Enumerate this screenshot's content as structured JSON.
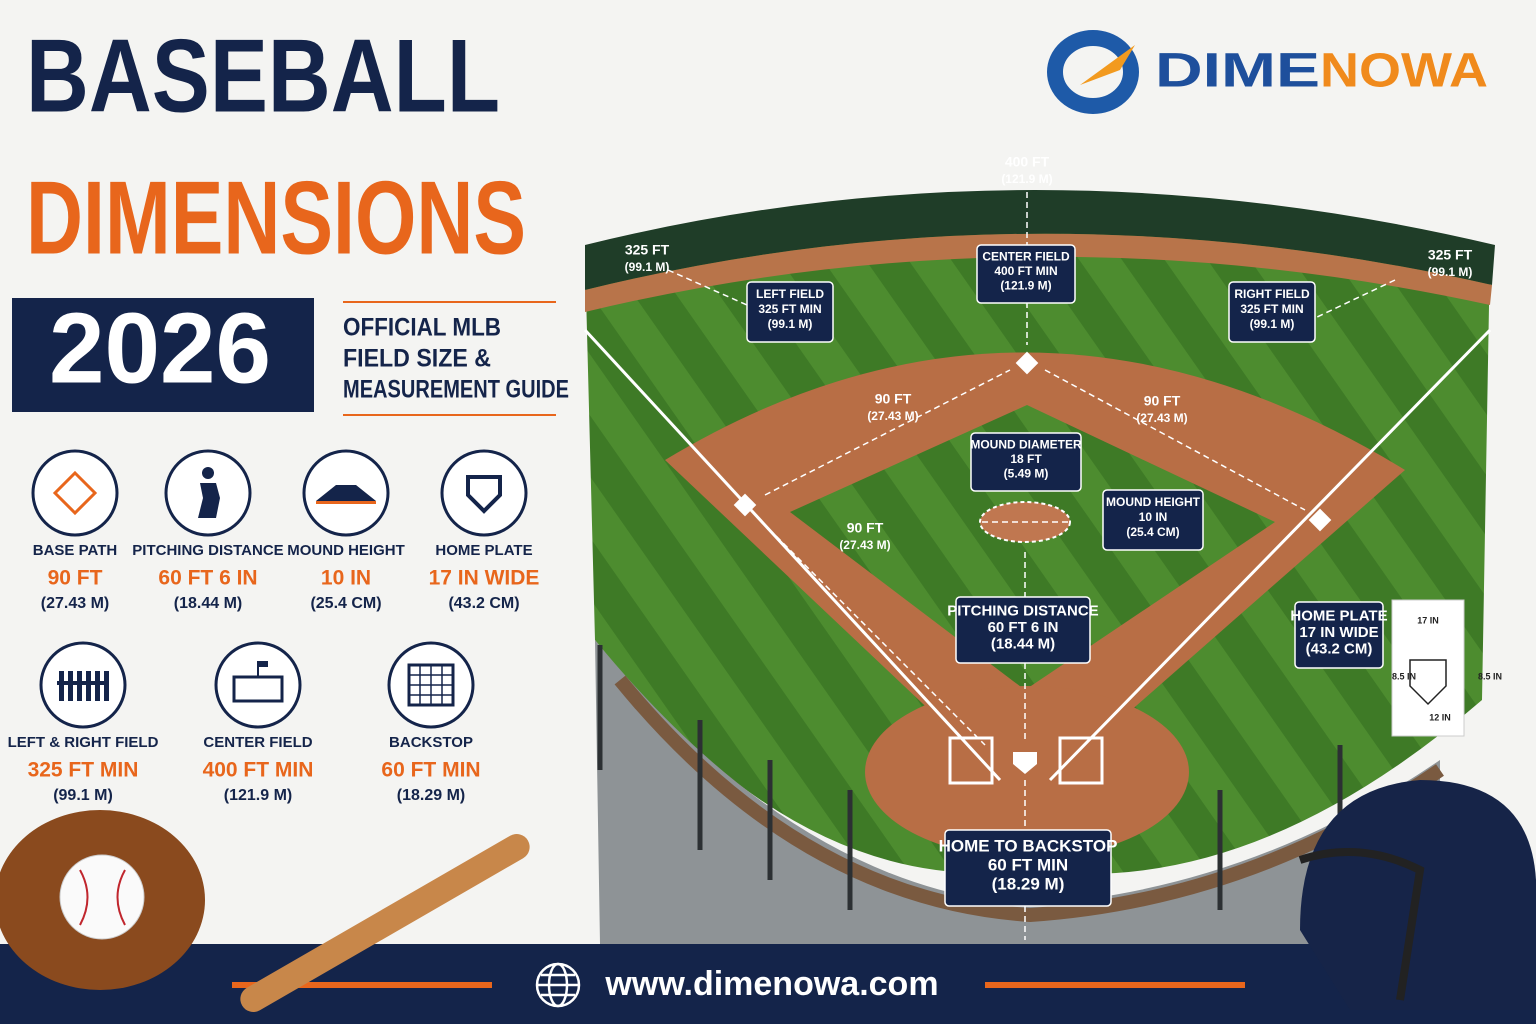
{
  "header": {
    "title": [
      "BASEBALL",
      "DIMENSIONS"
    ],
    "year": "2026",
    "subtitle": [
      "OFFICIAL MLB",
      "FIELD SIZE &",
      "MEASUREMENT GUIDE"
    ]
  },
  "brand": {
    "name": [
      "DIME",
      "NOWA"
    ]
  },
  "stats": [
    {
      "label": "BASE PATH",
      "value": "90 FT",
      "metric": "(27.43 M)"
    },
    {
      "label": "PITCHING DISTANCE",
      "value": "60 FT 6 IN",
      "metric": "(18.44 M)"
    },
    {
      "label": "MOUND HEIGHT",
      "value": "10 IN",
      "metric": "(25.4 CM)"
    },
    {
      "label": "HOME PLATE",
      "value": "17 IN WIDE",
      "metric": "(43.2 CM)"
    },
    {
      "label": "LEFT & RIGHT FIELD",
      "value": "325 FT MIN",
      "metric": "(99.1 M)"
    },
    {
      "label": "CENTER FIELD",
      "value": "400 FT MIN",
      "metric": "(121.9 M)"
    },
    {
      "label": "BACKSTOP",
      "value": "60 FT MIN",
      "metric": "(18.29 M)"
    }
  ],
  "distance_labels": [
    {
      "lines": [
        "400 FT",
        "(121.9 M)"
      ]
    },
    {
      "lines": [
        "325 FT",
        "(99.1 M)"
      ]
    },
    {
      "lines": [
        "325 FT",
        "(99.1 M)"
      ]
    },
    {
      "lines": [
        "90 FT",
        "(27.43 M)"
      ]
    },
    {
      "lines": [
        "90 FT",
        "(27.43 M)"
      ]
    },
    {
      "lines": [
        "90 FT",
        "(27.43 M)"
      ]
    }
  ],
  "callout_boxes": [
    {
      "lines": [
        "LEFT FIELD",
        "325 FT MIN",
        "(99.1 M)"
      ]
    },
    {
      "lines": [
        "CENTER FIELD",
        "400 FT MIN",
        "(121.9 M)"
      ]
    },
    {
      "lines": [
        "RIGHT FIELD",
        "325 FT MIN",
        "(99.1 M)"
      ]
    },
    {
      "lines": [
        "MOUND DIAMETER",
        "18 FT",
        "(5.49 M)"
      ]
    },
    {
      "lines": [
        "MOUND HEIGHT",
        "10 IN",
        "(25.4 CM)"
      ]
    },
    {
      "lines": [
        "PITCHING DISTANCE",
        "60 FT 6 IN",
        "(18.44 M)"
      ]
    },
    {
      "lines": [
        "HOME PLATE",
        "17 IN WIDE",
        "(43.2 CM)"
      ]
    },
    {
      "lines": [
        "HOME TO BACKSTOP",
        "60 FT MIN",
        "(18.29 M)"
      ]
    }
  ],
  "home_plate_diagram": {
    "top": "17 IN",
    "left": "8.5 IN",
    "right": "8.5 IN",
    "bottom": "12 IN"
  },
  "footer": {
    "url": "www.dimenowa.com"
  }
}
